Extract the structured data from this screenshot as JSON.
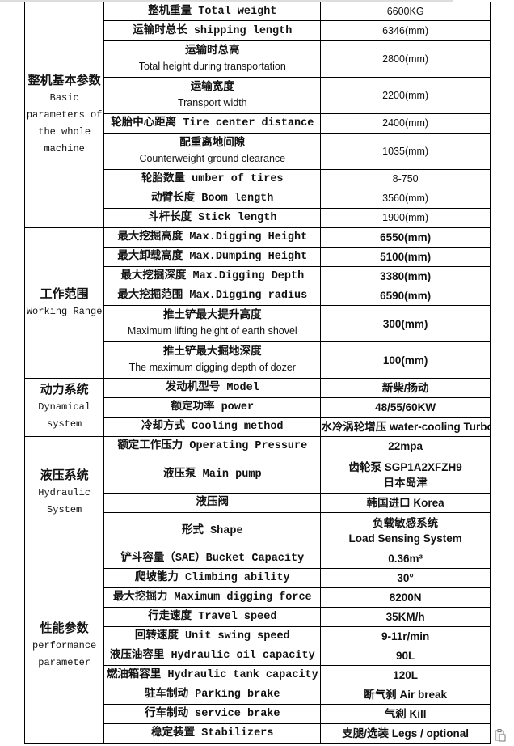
{
  "sections": [
    {
      "label_cn": "整机基本参数",
      "label_en": "Basic parameters of the whole machine",
      "rows": [
        {
          "label": [
            "整机重量 Total weight"
          ],
          "value": [
            "6600KG"
          ]
        },
        {
          "label": [
            "运输时总长 shipping length"
          ],
          "value": [
            "6346(mm)"
          ]
        },
        {
          "label": [
            "运输时总高",
            "Total height during transportation"
          ],
          "value": [
            "2800(mm)"
          ]
        },
        {
          "label": [
            "运输宽度",
            "Transport width"
          ],
          "value": [
            "2200(mm)"
          ]
        },
        {
          "label": [
            "轮胎中心距离 Tire center distance"
          ],
          "value": [
            "2400(mm)"
          ]
        },
        {
          "label": [
            "配重离地间隙",
            "Counterweight ground clearance"
          ],
          "value": [
            "1035(mm)"
          ]
        },
        {
          "label": [
            "轮胎数量 umber of tires"
          ],
          "value": [
            "8-750"
          ]
        },
        {
          "label": [
            "动臂长度 Boom length"
          ],
          "value": [
            "3560(mm)"
          ]
        },
        {
          "label": [
            "斗杆长度 Stick length"
          ],
          "value": [
            "1900(mm)"
          ]
        }
      ]
    },
    {
      "label_cn": "工作范围",
      "label_en": "Working Range",
      "rows": [
        {
          "label": [
            "最大挖掘高度 Max.Digging Height"
          ],
          "value": [
            "6550(mm)"
          ]
        },
        {
          "label": [
            "最大卸载高度 Max.Dumping Height"
          ],
          "value": [
            "5100(mm)"
          ]
        },
        {
          "label": [
            "最大挖掘深度 Max.Digging Depth"
          ],
          "value": [
            "3380(mm)"
          ]
        },
        {
          "label": [
            "最大挖掘范围 Max.Digging radius"
          ],
          "value": [
            "6590(mm)"
          ]
        },
        {
          "label": [
            "推土铲最大提升高度",
            "Maximum lifting height of earth shovel"
          ],
          "value": [
            "300(mm)"
          ]
        },
        {
          "label": [
            "推土铲最大掘地深度",
            "The maximum digging depth of dozer"
          ],
          "value": [
            "100(mm)"
          ]
        }
      ]
    },
    {
      "label_cn": "动力系统",
      "label_en": "Dynamical system",
      "rows": [
        {
          "label": [
            "发动机型号 Model"
          ],
          "value": [
            "新柴/扬动"
          ]
        },
        {
          "label": [
            "额定功率 power"
          ],
          "value": [
            "48/55/60KW"
          ]
        },
        {
          "label": [
            "冷却方式 Cooling method"
          ],
          "value": [
            "水冷涡轮增压 water-cooling Turbo"
          ]
        }
      ]
    },
    {
      "label_cn": "液压系统",
      "label_en": "Hydraulic System",
      "rows": [
        {
          "label": [
            "额定工作压力 Operating Pressure"
          ],
          "value": [
            "22mpa"
          ]
        },
        {
          "label": [
            "液压泵 Main pump"
          ],
          "value": [
            "齿轮泵 SGP1A2XFZH9",
            "日本岛津"
          ]
        },
        {
          "label": [
            "液压阀"
          ],
          "value": [
            "韩国进口 Korea"
          ]
        },
        {
          "label": [
            "形式 Shape"
          ],
          "value": [
            "负载敏感系统",
            "Load Sensing System"
          ]
        }
      ]
    },
    {
      "label_cn": "性能参数",
      "label_en": "performance parameter",
      "rows": [
        {
          "label": [
            "铲斗容量（SAE）Bucket Capacity"
          ],
          "value": [
            "0.36m³"
          ]
        },
        {
          "label": [
            "爬坡能力 Climbing ability"
          ],
          "value": [
            "30°"
          ]
        },
        {
          "label": [
            "最大挖掘力 Maximum digging force"
          ],
          "value": [
            "8200N"
          ]
        },
        {
          "label": [
            "行走速度 Travel speed"
          ],
          "value": [
            "35KM/h"
          ]
        },
        {
          "label": [
            "回转速度 Unit swing speed"
          ],
          "value": [
            "9-11r/min"
          ]
        },
        {
          "label": [
            "液压油容里 Hydraulic oil capacity"
          ],
          "value": [
            "90L"
          ]
        },
        {
          "label": [
            "燃油箱容里 Hydraulic tank capacity"
          ],
          "value": [
            "120L"
          ]
        },
        {
          "label": [
            "驻车制动 Parking brake"
          ],
          "value": [
            "断气刹 Air break"
          ]
        },
        {
          "label": [
            "行车制动 service brake"
          ],
          "value": [
            "气刹 Kill"
          ]
        },
        {
          "label": [
            "稳定装置 Stabilizers"
          ],
          "value": [
            "支腿/选装 Legs / optional"
          ]
        }
      ]
    }
  ],
  "icons": {
    "paste_options": "clipboard-icon"
  }
}
